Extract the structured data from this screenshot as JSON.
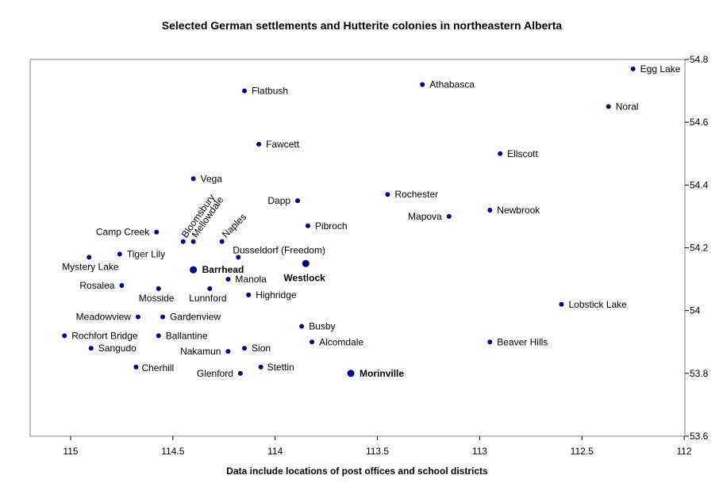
{
  "chart_data": {
    "type": "scatter",
    "title": "Selected German settlements and Hutterite colonies in northeastern Alberta",
    "xlabel": "Data include locations of post offices and school districts",
    "ylabel": "",
    "x_reversed": true,
    "xlim": [
      112,
      115.2
    ],
    "ylim": [
      53.6,
      54.8
    ],
    "xticks": [
      "115",
      "114.5",
      "114",
      "113.5",
      "113",
      "112.5",
      "112"
    ],
    "yticks": [
      "53.6",
      "53.8",
      "54",
      "54.2",
      "54.4",
      "54.6",
      "54.8"
    ],
    "y_axis_position": "right",
    "grid": false,
    "marker_color": "#000080",
    "points": [
      {
        "name": "Egg Lake",
        "x": 112.25,
        "y": 54.77
      },
      {
        "name": "Athabasca",
        "x": 113.28,
        "y": 54.72
      },
      {
        "name": "Flatbush",
        "x": 114.15,
        "y": 54.7
      },
      {
        "name": "Noral",
        "x": 112.37,
        "y": 54.65
      },
      {
        "name": "Fawcett",
        "x": 114.08,
        "y": 54.53
      },
      {
        "name": "Ellscott",
        "x": 112.9,
        "y": 54.5
      },
      {
        "name": "Vega",
        "x": 114.4,
        "y": 54.42
      },
      {
        "name": "Rochester",
        "x": 113.45,
        "y": 54.37
      },
      {
        "name": "Dapp",
        "x": 113.89,
        "y": 54.35
      },
      {
        "name": "Newbrook",
        "x": 112.95,
        "y": 54.32
      },
      {
        "name": "Mapova",
        "x": 113.15,
        "y": 54.3
      },
      {
        "name": "Pibroch",
        "x": 113.84,
        "y": 54.27
      },
      {
        "name": "Camp Creek",
        "x": 114.58,
        "y": 54.25
      },
      {
        "name": "Bloomsbury",
        "x": 114.45,
        "y": 54.22
      },
      {
        "name": "Mellowdale",
        "x": 114.4,
        "y": 54.22
      },
      {
        "name": "Naples",
        "x": 114.26,
        "y": 54.22
      },
      {
        "name": "Tiger Lily",
        "x": 114.76,
        "y": 54.18
      },
      {
        "name": "Mystery Lake",
        "x": 114.91,
        "y": 54.17
      },
      {
        "name": "Dusseldorf (Freedom)",
        "x": 114.18,
        "y": 54.17
      },
      {
        "name": "Westlock",
        "x": 113.85,
        "y": 54.15
      },
      {
        "name": "Barrhead",
        "x": 114.4,
        "y": 54.13
      },
      {
        "name": "Manola",
        "x": 114.23,
        "y": 54.1
      },
      {
        "name": "Rosalea",
        "x": 114.75,
        "y": 54.08
      },
      {
        "name": "Mosside",
        "x": 114.57,
        "y": 54.07
      },
      {
        "name": "Lunnford",
        "x": 114.32,
        "y": 54.07
      },
      {
        "name": "Highridge",
        "x": 114.13,
        "y": 54.05
      },
      {
        "name": "Lobstick Lake",
        "x": 112.6,
        "y": 54.02
      },
      {
        "name": "Meadowview",
        "x": 114.67,
        "y": 53.98
      },
      {
        "name": "Gardenview",
        "x": 114.55,
        "y": 53.98
      },
      {
        "name": "Busby",
        "x": 113.87,
        "y": 53.95
      },
      {
        "name": "Rochfort Bridge",
        "x": 115.03,
        "y": 53.92
      },
      {
        "name": "Ballantine",
        "x": 114.57,
        "y": 53.92
      },
      {
        "name": "Alcomdale",
        "x": 113.82,
        "y": 53.9
      },
      {
        "name": "Beaver Hills",
        "x": 112.95,
        "y": 53.9
      },
      {
        "name": "Sangudo",
        "x": 114.9,
        "y": 53.88
      },
      {
        "name": "Sion",
        "x": 114.15,
        "y": 53.88
      },
      {
        "name": "Nakamun",
        "x": 114.23,
        "y": 53.87
      },
      {
        "name": "Cherhill",
        "x": 114.68,
        "y": 53.82
      },
      {
        "name": "Stettin",
        "x": 114.07,
        "y": 53.82
      },
      {
        "name": "Glenford",
        "x": 114.17,
        "y": 53.8
      },
      {
        "name": "Morinville",
        "x": 113.63,
        "y": 53.8
      }
    ]
  }
}
